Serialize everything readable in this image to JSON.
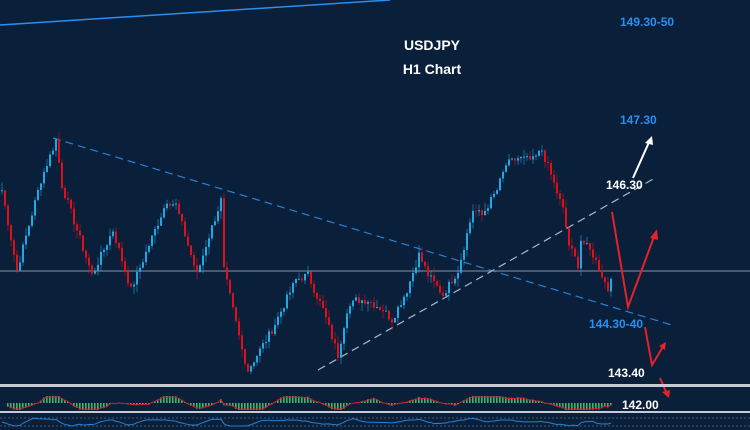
{
  "chart_data": {
    "type": "candlestick",
    "title": "USDJPY",
    "subtitle": "H1 Chart",
    "ylim": [
      143.32,
      148.99
    ],
    "reference_level": 145.0,
    "price_path": [
      {
        "i": 0,
        "p": 146.19
      },
      {
        "i": 5,
        "p": 145.01
      },
      {
        "i": 13,
        "p": 146.34
      },
      {
        "i": 18,
        "p": 146.93
      },
      {
        "i": 20,
        "p": 146.26
      },
      {
        "i": 30,
        "p": 144.94
      },
      {
        "i": 37,
        "p": 145.6
      },
      {
        "i": 43,
        "p": 144.72
      },
      {
        "i": 55,
        "p": 146.04
      },
      {
        "i": 58,
        "p": 145.97
      },
      {
        "i": 65,
        "p": 144.94
      },
      {
        "i": 68,
        "p": 145.38
      },
      {
        "i": 73,
        "p": 146.04
      },
      {
        "i": 74,
        "p": 145.01
      },
      {
        "i": 80,
        "p": 143.84
      },
      {
        "i": 82,
        "p": 143.54
      },
      {
        "i": 90,
        "p": 144.13
      },
      {
        "i": 98,
        "p": 144.87
      },
      {
        "i": 102,
        "p": 144.94
      },
      {
        "i": 107,
        "p": 144.43
      },
      {
        "i": 112,
        "p": 143.76
      },
      {
        "i": 115,
        "p": 144.43
      },
      {
        "i": 118,
        "p": 144.57
      },
      {
        "i": 122,
        "p": 144.57
      },
      {
        "i": 127,
        "p": 144.43
      },
      {
        "i": 130,
        "p": 144.28
      },
      {
        "i": 135,
        "p": 144.72
      },
      {
        "i": 139,
        "p": 145.24
      },
      {
        "i": 142,
        "p": 144.94
      },
      {
        "i": 147,
        "p": 144.65
      },
      {
        "i": 152,
        "p": 145.01
      },
      {
        "i": 157,
        "p": 145.9
      },
      {
        "i": 160,
        "p": 145.82
      },
      {
        "i": 165,
        "p": 146.19
      },
      {
        "i": 168,
        "p": 146.56
      },
      {
        "i": 172,
        "p": 146.66
      },
      {
        "i": 177,
        "p": 146.63
      },
      {
        "i": 180,
        "p": 146.78
      },
      {
        "i": 183,
        "p": 146.41
      },
      {
        "i": 187,
        "p": 145.9
      },
      {
        "i": 189,
        "p": 145.38
      },
      {
        "i": 192,
        "p": 145.09
      },
      {
        "i": 193,
        "p": 145.46
      },
      {
        "i": 197,
        "p": 145.24
      },
      {
        "i": 200,
        "p": 144.94
      },
      {
        "i": 202,
        "p": 144.72
      },
      {
        "i": 203,
        "p": 144.94
      }
    ],
    "annotations": {
      "level_1": "149.30-50",
      "level_2": "147.30",
      "level_3": "146.30",
      "level_4": "144.30-40",
      "level_5": "143.40",
      "level_6": "142.00"
    }
  },
  "colors": {
    "background": "#0a1f3a",
    "bull": "#1fa8e8",
    "bear": "#e0101a",
    "accent_blue": "#2a8ff0",
    "arrow_red": "#e8202a"
  }
}
